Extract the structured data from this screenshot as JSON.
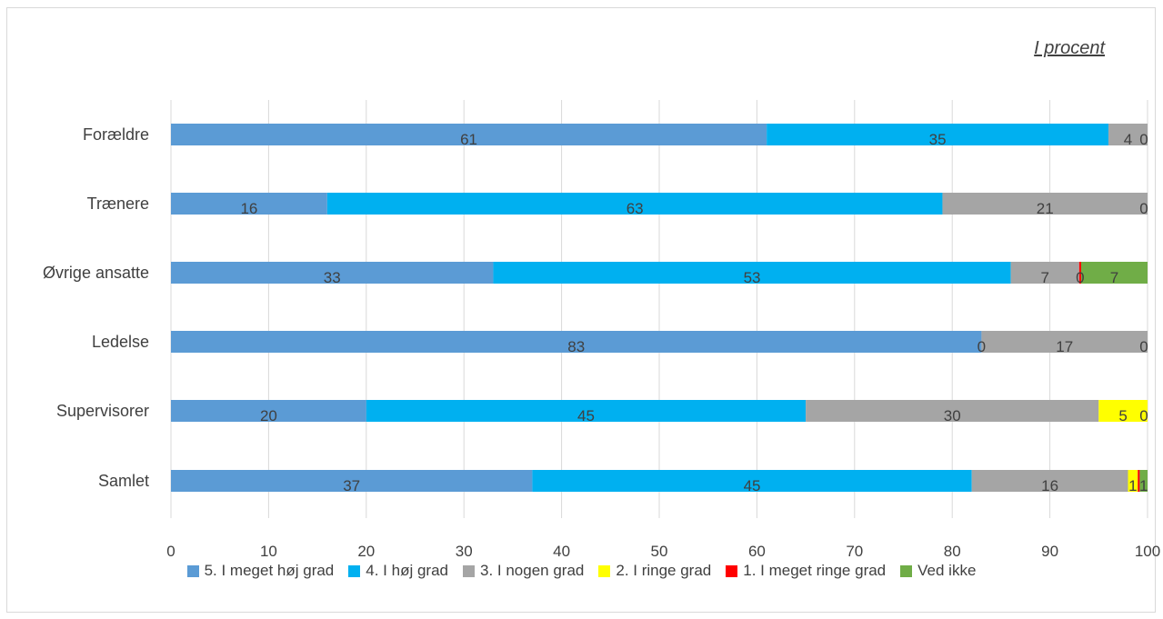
{
  "chart_data": {
    "type": "bar",
    "orientation": "horizontal",
    "stacked": true,
    "title": "",
    "subtitle": "I procent",
    "xlabel": "",
    "ylabel": "",
    "xlim": [
      0,
      100
    ],
    "xticks": [
      0,
      10,
      20,
      30,
      40,
      50,
      60,
      70,
      80,
      90,
      100
    ],
    "grid": true,
    "legend_position": "bottom",
    "categories": [
      "Forældre",
      "Trænere",
      "Øvrige ansatte",
      "Ledelse",
      "Supervisorer",
      "Samlet"
    ],
    "series": [
      {
        "name": "5. I meget høj grad",
        "color": "#5b9bd5",
        "values": [
          61,
          16,
          33,
          83,
          20,
          37
        ],
        "labels": [
          "61",
          "16",
          "33",
          "83",
          "20",
          "37"
        ]
      },
      {
        "name": "4. I høj grad",
        "color": "#00b0f0",
        "values": [
          35,
          63,
          53,
          0,
          45,
          45
        ],
        "labels": [
          "35",
          "63",
          "53",
          "0",
          "45",
          "45"
        ]
      },
      {
        "name": "3. I nogen grad",
        "color": "#a5a5a5",
        "values": [
          4,
          21,
          7,
          17,
          30,
          16
        ],
        "labels": [
          "4",
          "21",
          "7",
          "17",
          "30",
          "16"
        ]
      },
      {
        "name": "2. I ringe grad",
        "color": "#ffff00",
        "values": [
          0,
          0,
          0,
          0,
          5,
          1
        ],
        "labels": [
          "",
          "",
          "",
          "",
          "5",
          "1"
        ]
      },
      {
        "name": "1. I meget ringe grad",
        "color": "#ff0000",
        "values": [
          0,
          0,
          0.2,
          0,
          0,
          0.2
        ],
        "labels": [
          "",
          "",
          "0",
          "",
          "",
          ""
        ]
      },
      {
        "name": "Ved ikke",
        "color": "#70ad47",
        "values": [
          0,
          0,
          7,
          0,
          0,
          1
        ],
        "labels": [
          "0",
          "0",
          "7",
          "0",
          "0",
          "1"
        ]
      }
    ]
  }
}
